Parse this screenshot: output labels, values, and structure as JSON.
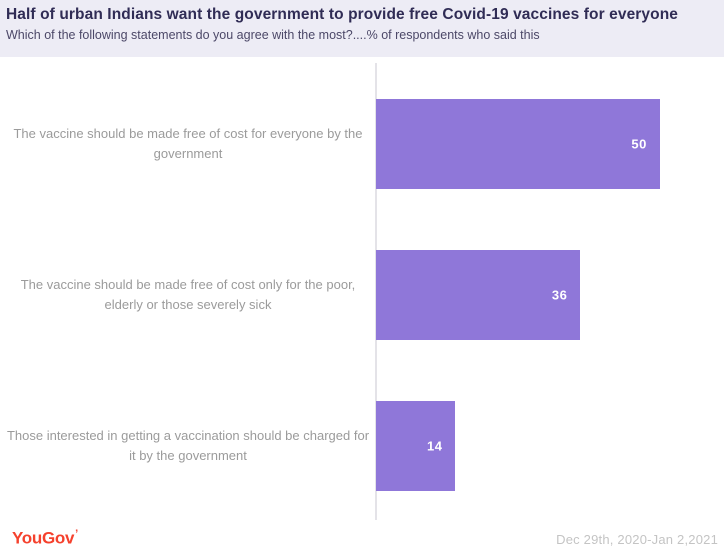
{
  "header": {
    "title": "Half of urban Indians want the government to provide free Covid-19 vaccines for everyone",
    "subtitle": "Which of the following statements do you agree with the most?....% of respondents who said this"
  },
  "chart_data": {
    "type": "bar",
    "orientation": "horizontal",
    "title": "Half of urban Indians want the government to provide free Covid-19 vaccines for everyone",
    "subtitle": "Which of the following statements do you agree with the most?....% of respondents who said this",
    "categories": [
      "The vaccine should be made free of cost for everyone by the government",
      "The vaccine should be made free of cost only for the poor, elderly or those severely sick",
      "Those interested in getting a vaccination should be charged for it by the government"
    ],
    "values": [
      50,
      36,
      14
    ],
    "xlabel": "",
    "ylabel": "",
    "xlim": [
      0,
      61.3
    ],
    "grid": false,
    "legend": "none",
    "bar_color": "#8f77d9",
    "value_label_color": "#ffffff"
  },
  "footer": {
    "brand": "YouGov",
    "brand_accent": "’",
    "date_range": "Dec 29th, 2020-Jan 2,2021"
  },
  "colors": {
    "header_bg": "#edecf5",
    "title_text": "#302c55",
    "subtitle_text": "#4c4868",
    "category_label_text": "#9b9b9b",
    "axis_line": "#e4e3e8",
    "brand_red": "#f5412d",
    "date_text": "#c4c4c4"
  }
}
